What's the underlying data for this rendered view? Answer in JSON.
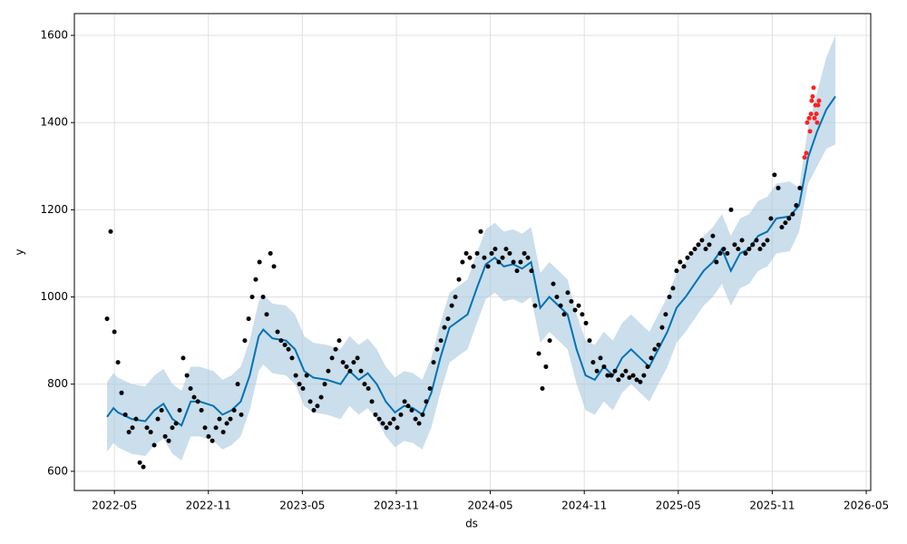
{
  "chart_data": {
    "type": "line",
    "xlabel": "ds",
    "ylabel": "y",
    "xlim": [
      2022.12,
      2026.357
    ],
    "ylim": [
      556,
      1650
    ],
    "xticks": [
      {
        "value": 2022.333,
        "label": "2022-05"
      },
      {
        "value": 2022.833,
        "label": "2022-11"
      },
      {
        "value": 2023.333,
        "label": "2023-05"
      },
      {
        "value": 2023.833,
        "label": "2023-11"
      },
      {
        "value": 2024.333,
        "label": "2024-05"
      },
      {
        "value": 2024.833,
        "label": "2024-11"
      },
      {
        "value": 2025.333,
        "label": "2025-05"
      },
      {
        "value": 2025.833,
        "label": "2025-11"
      },
      {
        "value": 2026.333,
        "label": "2026-05"
      }
    ],
    "yticks": [
      600,
      800,
      1000,
      1200,
      1400,
      1600
    ],
    "grid": true,
    "series": [
      {
        "type": "band",
        "color": "#0072b2",
        "x": [
          2022.294,
          2022.328,
          2022.352,
          2022.425,
          2022.497,
          2022.546,
          2022.594,
          2022.642,
          2022.69,
          2022.739,
          2022.787,
          2022.86,
          2022.908,
          2022.956,
          2023.005,
          2023.053,
          2023.101,
          2023.125,
          2023.174,
          2023.246,
          2023.294,
          2023.343,
          2023.391,
          2023.463,
          2023.536,
          2023.584,
          2023.633,
          2023.681,
          2023.729,
          2023.777,
          2023.826,
          2023.874,
          2023.922,
          2023.971,
          2024.019,
          2024.067,
          2024.116,
          2024.164,
          2024.212,
          2024.261,
          2024.309,
          2024.357,
          2024.405,
          2024.454,
          2024.502,
          2024.55,
          2024.599,
          2024.647,
          2024.696,
          2024.744,
          2024.792,
          2024.84,
          2024.889,
          2024.937,
          2024.985,
          2025.034,
          2025.082,
          2025.13,
          2025.179,
          2025.227,
          2025.275,
          2025.324,
          2025.372,
          2025.42,
          2025.468,
          2025.517,
          2025.565,
          2025.613,
          2025.662,
          2025.71,
          2025.758,
          2025.807,
          2025.855,
          2025.927,
          2025.976,
          2026.024,
          2026.072,
          2026.121,
          2026.169
        ],
        "values": [
          725,
          745,
          735,
          720,
          715,
          740,
          755,
          720,
          705,
          760,
          760,
          750,
          730,
          740,
          760,
          820,
          910,
          925,
          905,
          900,
          880,
          830,
          815,
          810,
          800,
          830,
          810,
          825,
          800,
          760,
          735,
          750,
          745,
          730,
          780,
          860,
          930,
          945,
          960,
          1020,
          1075,
          1090,
          1070,
          1075,
          1065,
          1080,
          975,
          1000,
          980,
          960,
          880,
          820,
          810,
          840,
          820,
          860,
          880,
          860,
          840,
          880,
          920,
          975,
          1000,
          1030,
          1060,
          1080,
          1110,
          1060,
          1100,
          1110,
          1140,
          1150,
          1180,
          1185,
          1210,
          1320,
          1380,
          1430,
          1460
        ],
        "upper": [
          805,
          825,
          815,
          800,
          795,
          820,
          835,
          800,
          785,
          840,
          840,
          830,
          810,
          820,
          840,
          900,
          990,
          1005,
          985,
          980,
          960,
          910,
          895,
          890,
          880,
          910,
          890,
          905,
          880,
          840,
          815,
          830,
          825,
          810,
          860,
          940,
          1010,
          1025,
          1040,
          1100,
          1155,
          1170,
          1150,
          1155,
          1145,
          1160,
          1055,
          1080,
          1060,
          1040,
          960,
          900,
          890,
          920,
          900,
          940,
          960,
          940,
          920,
          960,
          1000,
          1055,
          1080,
          1110,
          1140,
          1160,
          1190,
          1140,
          1180,
          1190,
          1220,
          1230,
          1260,
          1265,
          1250,
          1390,
          1470,
          1550,
          1600
        ],
        "lower": [
          645,
          665,
          655,
          640,
          635,
          660,
          675,
          640,
          625,
          680,
          680,
          670,
          650,
          660,
          680,
          740,
          830,
          845,
          825,
          820,
          800,
          750,
          735,
          730,
          720,
          750,
          730,
          745,
          720,
          680,
          655,
          670,
          665,
          650,
          700,
          780,
          850,
          865,
          880,
          940,
          995,
          1010,
          990,
          995,
          985,
          1000,
          895,
          920,
          900,
          880,
          800,
          740,
          730,
          760,
          740,
          780,
          800,
          780,
          760,
          800,
          840,
          895,
          920,
          950,
          980,
          1000,
          1030,
          980,
          1020,
          1030,
          1060,
          1070,
          1100,
          1105,
          1150,
          1260,
          1300,
          1340,
          1350
        ],
        "band_color": "#a6c8e0"
      },
      {
        "type": "scatter",
        "color": "#000000",
        "x": [
          2022.294,
          2022.313,
          2022.333,
          2022.352,
          2022.371,
          2022.391,
          2022.41,
          2022.429,
          2022.448,
          2022.468,
          2022.487,
          2022.506,
          2022.526,
          2022.545,
          2022.564,
          2022.584,
          2022.603,
          2022.622,
          2022.641,
          2022.661,
          2022.68,
          2022.699,
          2022.719,
          2022.738,
          2022.757,
          2022.777,
          2022.796,
          2022.815,
          2022.834,
          2022.854,
          2022.873,
          2022.892,
          2022.912,
          2022.931,
          2022.95,
          2022.97,
          2022.989,
          2023.008,
          2023.027,
          2023.047,
          2023.066,
          2023.085,
          2023.105,
          2023.124,
          2023.143,
          2023.163,
          2023.182,
          2023.201,
          2023.22,
          2023.24,
          2023.259,
          2023.278,
          2023.298,
          2023.317,
          2023.336,
          2023.356,
          2023.375,
          2023.394,
          2023.413,
          2023.433,
          2023.452,
          2023.471,
          2023.491,
          2023.51,
          2023.529,
          2023.549,
          2023.568,
          2023.587,
          2023.606,
          2023.626,
          2023.645,
          2023.664,
          2023.684,
          2023.703,
          2023.722,
          2023.742,
          2023.761,
          2023.78,
          2023.799,
          2023.819,
          2023.838,
          2023.857,
          2023.877,
          2023.896,
          2023.915,
          2023.935,
          2023.954,
          2023.973,
          2023.992,
          2024.012,
          2024.031,
          2024.05,
          2024.07,
          2024.089,
          2024.108,
          2024.128,
          2024.147,
          2024.166,
          2024.185,
          2024.205,
          2024.224,
          2024.243,
          2024.263,
          2024.282,
          2024.301,
          2024.321,
          2024.34,
          2024.359,
          2024.378,
          2024.398,
          2024.417,
          2024.436,
          2024.456,
          2024.475,
          2024.494,
          2024.514,
          2024.533,
          2024.552,
          2024.571,
          2024.591,
          2024.61,
          2024.629,
          2024.649,
          2024.668,
          2024.687,
          2024.707,
          2024.726,
          2024.745,
          2024.764,
          2024.784,
          2024.803,
          2024.822,
          2024.842,
          2024.861,
          2024.88,
          2024.9,
          2024.919,
          2024.938,
          2024.957,
          2024.977,
          2024.996,
          2025.015,
          2025.035,
          2025.054,
          2025.073,
          2025.093,
          2025.112,
          2025.131,
          2025.15,
          2025.17,
          2025.189,
          2025.208,
          2025.228,
          2025.247,
          2025.266,
          2025.286,
          2025.305,
          2025.324,
          2025.343,
          2025.363,
          2025.382,
          2025.401,
          2025.421,
          2025.44,
          2025.459,
          2025.479,
          2025.498,
          2025.517,
          2025.536,
          2025.556,
          2025.575,
          2025.594,
          2025.614,
          2025.633,
          2025.652,
          2025.672,
          2025.691,
          2025.71,
          2025.729,
          2025.749,
          2025.768,
          2025.787,
          2025.807,
          2025.826,
          2025.845,
          2025.865,
          2025.884,
          2025.903,
          2025.922,
          2025.942,
          2025.961,
          2025.98
        ],
        "values": [
          950,
          1150,
          920,
          850,
          780,
          730,
          690,
          700,
          720,
          620,
          610,
          700,
          690,
          660,
          720,
          740,
          680,
          670,
          700,
          710,
          740,
          860,
          820,
          790,
          770,
          760,
          740,
          700,
          680,
          670,
          700,
          720,
          690,
          710,
          720,
          740,
          800,
          730,
          900,
          950,
          1000,
          1040,
          1080,
          1000,
          960,
          1100,
          1070,
          920,
          900,
          890,
          880,
          860,
          820,
          800,
          790,
          820,
          760,
          740,
          750,
          770,
          800,
          830,
          860,
          880,
          900,
          850,
          840,
          830,
          850,
          860,
          830,
          800,
          790,
          760,
          730,
          720,
          710,
          700,
          710,
          720,
          700,
          730,
          760,
          750,
          740,
          720,
          710,
          730,
          760,
          790,
          850,
          880,
          900,
          930,
          950,
          980,
          1000,
          1040,
          1080,
          1100,
          1090,
          1070,
          1100,
          1150,
          1090,
          1070,
          1100,
          1110,
          1080,
          1090,
          1110,
          1100,
          1080,
          1060,
          1080,
          1100,
          1090,
          1060,
          980,
          870,
          790,
          840,
          900,
          1030,
          1000,
          980,
          960,
          1010,
          990,
          970,
          980,
          960,
          940,
          900,
          850,
          830,
          860,
          840,
          820,
          820,
          830,
          810,
          820,
          830,
          815,
          820,
          810,
          805,
          820,
          840,
          860,
          880,
          890,
          930,
          960,
          1000,
          1020,
          1060,
          1080,
          1070,
          1090,
          1100,
          1110,
          1120,
          1130,
          1110,
          1120,
          1140,
          1080,
          1100,
          1110,
          1100,
          1200,
          1120,
          1110,
          1130,
          1100,
          1110,
          1120,
          1130,
          1110,
          1120,
          1130,
          1180,
          1280,
          1250,
          1160,
          1170,
          1180,
          1190,
          1210,
          1250
        ]
      },
      {
        "type": "scatter",
        "color": "#ff2020",
        "x": [
          2026.005,
          2026.014,
          2026.019,
          2026.029,
          2026.034,
          2026.039,
          2026.043,
          2026.048,
          2026.053,
          2026.058,
          2026.063,
          2026.068,
          2026.072,
          2026.077,
          2026.082
        ],
        "values": [
          1320,
          1330,
          1400,
          1410,
          1380,
          1420,
          1450,
          1460,
          1480,
          1410,
          1440,
          1420,
          1400,
          1440,
          1450
        ]
      }
    ]
  }
}
